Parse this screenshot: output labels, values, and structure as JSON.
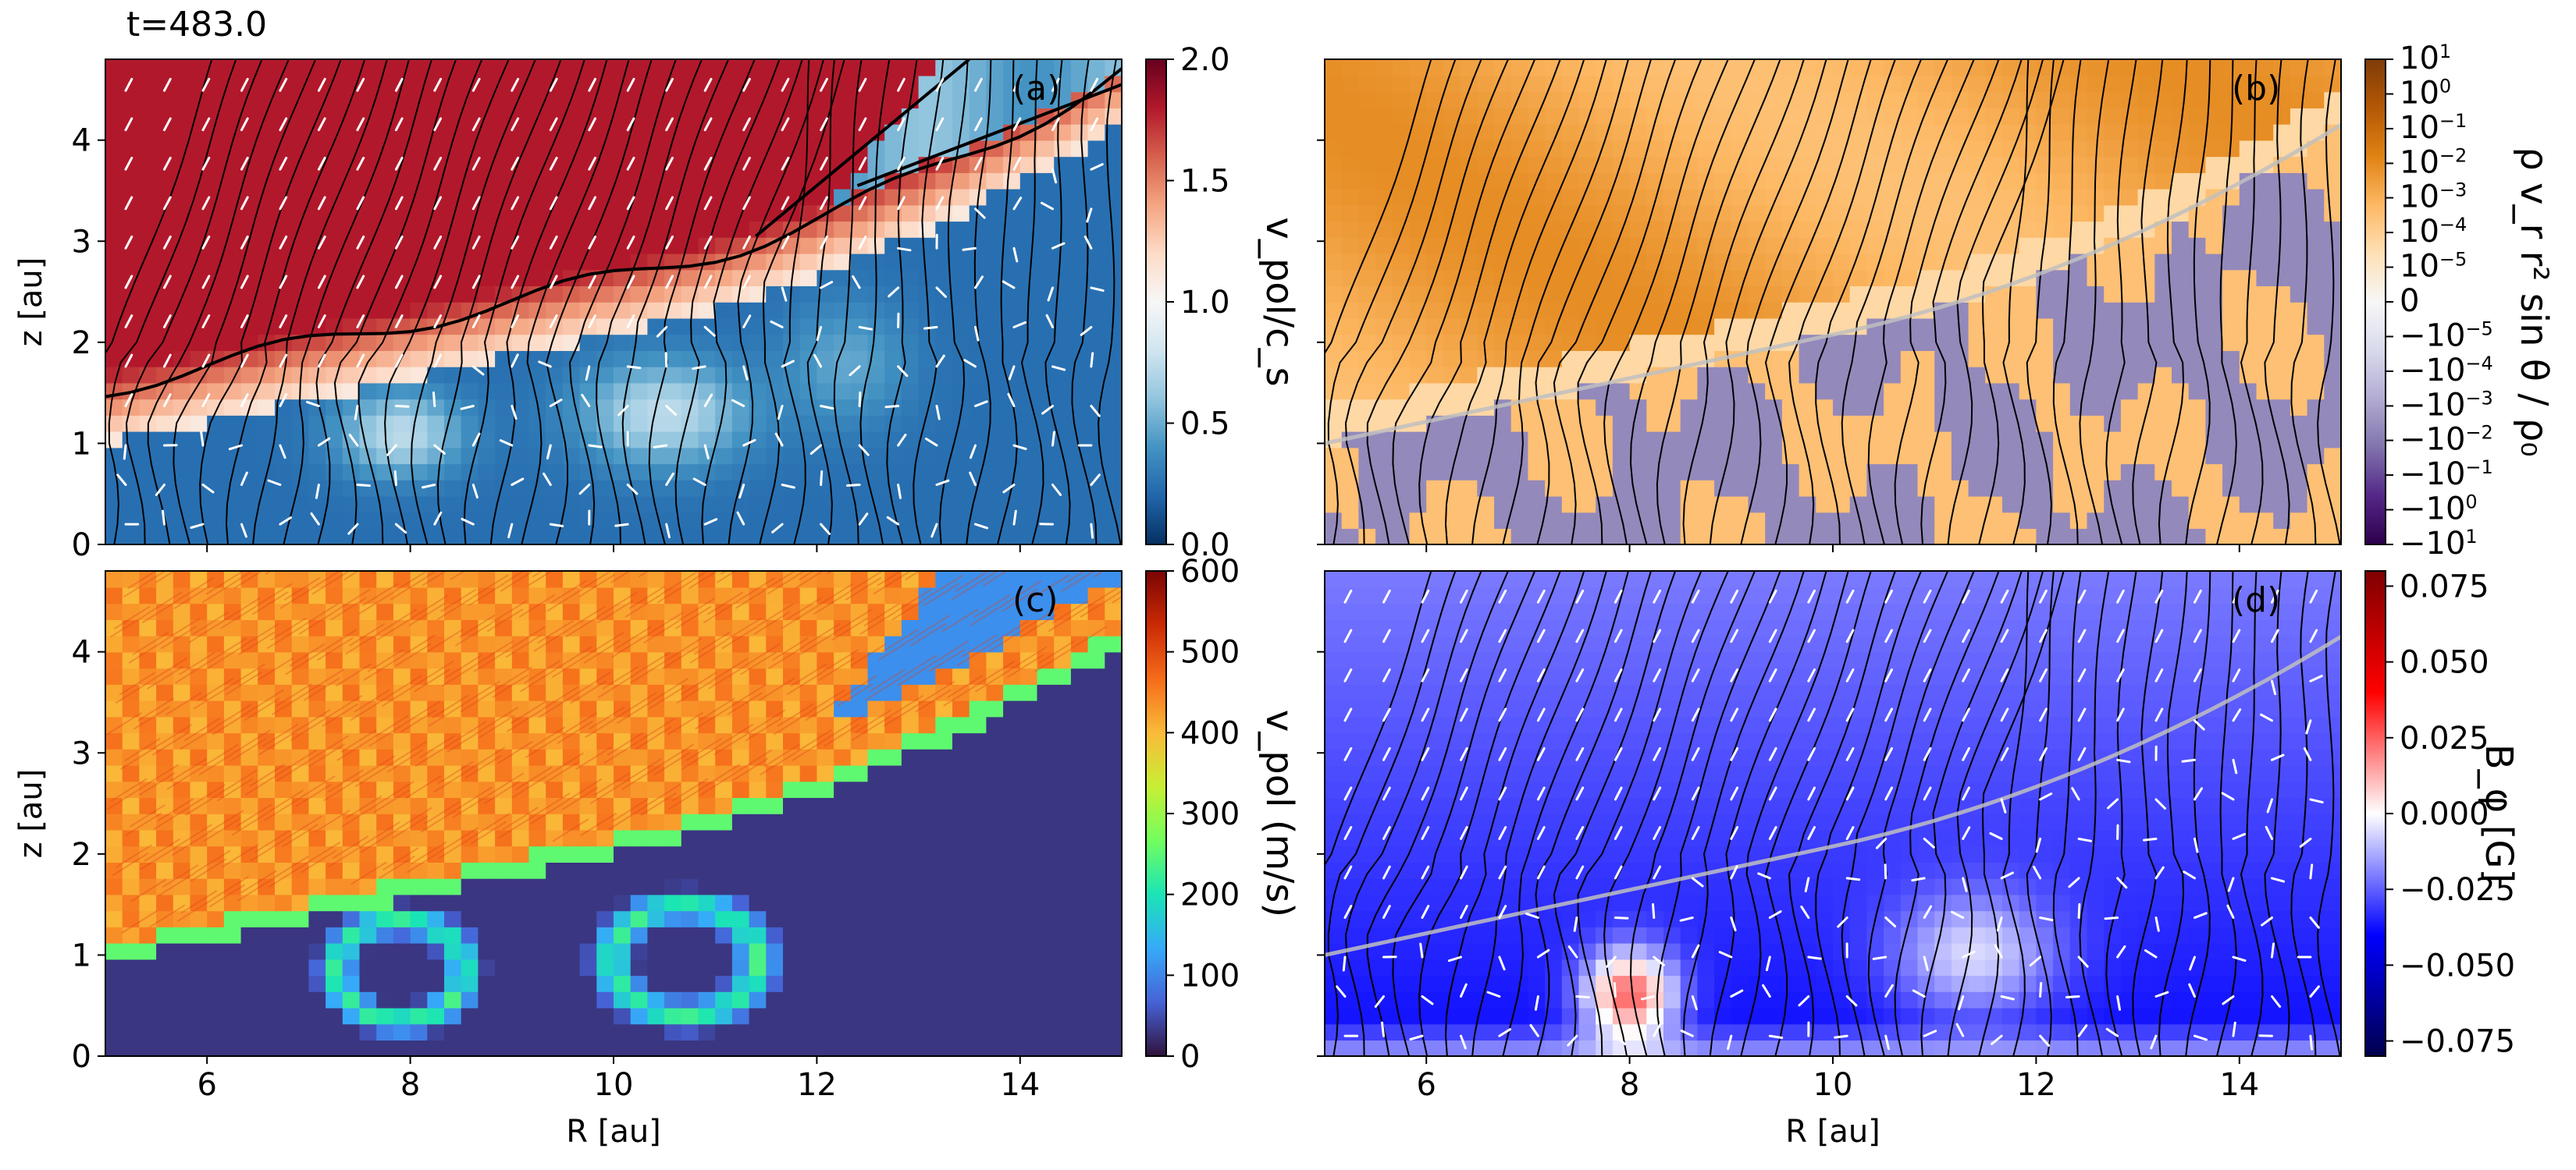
{
  "figure": {
    "time_label": "t=483.0"
  },
  "colors": {
    "rdbu": [
      "#053061",
      "#2166ac",
      "#4393c3",
      "#92c5de",
      "#d1e5f0",
      "#f7f7f7",
      "#fddbc7",
      "#f4a582",
      "#d6604d",
      "#b2182b",
      "#67001f"
    ],
    "puor": [
      "#2d004b",
      "#542788",
      "#8073ac",
      "#b2abd2",
      "#d8daeb",
      "#f7f7f7",
      "#fee0b6",
      "#fdb863",
      "#e08214",
      "#b35806",
      "#7f3b08"
    ],
    "turbo": [
      "#30123b",
      "#4662d7",
      "#36aaf9",
      "#1ae4b6",
      "#72fe5e",
      "#c8ef34",
      "#faba39",
      "#f66b19",
      "#ca2a04",
      "#7a0403"
    ],
    "seismic": [
      "#00004c",
      "#0000ff",
      "#ffffff",
      "#ff0000",
      "#7f0000"
    ],
    "field_lines": "#000000",
    "sonic_contour": "#000000",
    "base_contour": "#c0c0c0",
    "arrows": "#ffffff"
  },
  "chart_data": [
    {
      "panel": "a",
      "type": "heatmap",
      "panel_label": "(a)",
      "xlabel": "",
      "ylabel": "z [au]",
      "xlim": [
        5,
        15
      ],
      "ylim": [
        0,
        4.8
      ],
      "x_ticks": [
        "6",
        "8",
        "10",
        "12",
        "14"
      ],
      "x_tick_values": [
        6,
        8,
        10,
        12,
        14
      ],
      "show_x_ticklabels": false,
      "y_ticks": [
        "0",
        "1",
        "2",
        "3",
        "4"
      ],
      "y_tick_values": [
        0,
        1,
        2,
        3,
        4
      ],
      "show_y_ticklabels": true,
      "colormap": "RdBu_r",
      "colorbar": {
        "label": "v_pol/c_s",
        "range": [
          0,
          2.0
        ],
        "ticks": [
          "0.0",
          "0.5",
          "1.0",
          "1.5",
          "2.0"
        ],
        "tick_values": [
          0,
          0.5,
          1.0,
          1.5,
          2.0
        ]
      },
      "overlays": [
        "magnetic field lines",
        "sonic contour v_pol/c_s = 1",
        "velocity direction arrows"
      ]
    },
    {
      "panel": "b",
      "type": "heatmap",
      "panel_label": "(b)",
      "xlabel": "",
      "ylabel": "",
      "xlim": [
        5,
        15
      ],
      "ylim": [
        0,
        4.8
      ],
      "x_ticks": [
        "6",
        "8",
        "10",
        "12",
        "14"
      ],
      "x_tick_values": [
        6,
        8,
        10,
        12,
        14
      ],
      "show_x_ticklabels": false,
      "y_ticks": [
        "0",
        "1",
        "2",
        "3",
        "4"
      ],
      "y_tick_values": [
        0,
        1,
        2,
        3,
        4
      ],
      "show_y_ticklabels": false,
      "colormap": "PuOr_r (symlog)",
      "colorbar": {
        "label": "ρ v_r r² sin θ / ρ₀",
        "range": [
          -1,
          1
        ],
        "ticks": [
          {
            "base": "10",
            "exp": "1",
            "v": 1.0
          },
          {
            "base": "10",
            "exp": "0",
            "v": 0.857
          },
          {
            "base": "10",
            "exp": "−1",
            "v": 0.714
          },
          {
            "base": "10",
            "exp": "−2",
            "v": 0.571
          },
          {
            "base": "10",
            "exp": "−3",
            "v": 0.429
          },
          {
            "base": "10",
            "exp": "−4",
            "v": 0.286
          },
          {
            "base": "10",
            "exp": "−5",
            "v": 0.143
          },
          {
            "base": "0",
            "exp": "",
            "v": 0.0
          },
          {
            "base": "−10",
            "exp": "−5",
            "v": -0.143
          },
          {
            "base": "−10",
            "exp": "−4",
            "v": -0.286
          },
          {
            "base": "−10",
            "exp": "−3",
            "v": -0.429
          },
          {
            "base": "−10",
            "exp": "−2",
            "v": -0.571
          },
          {
            "base": "−10",
            "exp": "−1",
            "v": -0.714
          },
          {
            "base": "−10",
            "exp": "0",
            "v": -0.857
          },
          {
            "base": "−10",
            "exp": "1",
            "v": -1.0
          }
        ]
      },
      "overlays": [
        "magnetic field lines",
        "wind base contour"
      ]
    },
    {
      "panel": "c",
      "type": "heatmap",
      "panel_label": "(c)",
      "xlabel": "R [au]",
      "ylabel": "z [au]",
      "xlim": [
        5,
        15
      ],
      "ylim": [
        0,
        4.8
      ],
      "x_ticks": [
        "6",
        "8",
        "10",
        "12",
        "14"
      ],
      "x_tick_values": [
        6,
        8,
        10,
        12,
        14
      ],
      "show_x_ticklabels": true,
      "y_ticks": [
        "0",
        "1",
        "2",
        "3",
        "4"
      ],
      "y_tick_values": [
        0,
        1,
        2,
        3,
        4
      ],
      "show_y_ticklabels": true,
      "colormap": "turbo (LIC streaks)",
      "colorbar": {
        "label": "v_pol (m/s)",
        "range": [
          0,
          600
        ],
        "ticks": [
          "0",
          "100",
          "200",
          "300",
          "400",
          "500",
          "600"
        ],
        "tick_values": [
          0,
          100,
          200,
          300,
          400,
          500,
          600
        ]
      },
      "overlays": [
        "line integral convolution texture"
      ]
    },
    {
      "panel": "d",
      "type": "heatmap",
      "panel_label": "(d)",
      "xlabel": "R [au]",
      "ylabel": "",
      "xlim": [
        5,
        15
      ],
      "ylim": [
        0,
        4.8
      ],
      "x_ticks": [
        "6",
        "8",
        "10",
        "12",
        "14"
      ],
      "x_tick_values": [
        6,
        8,
        10,
        12,
        14
      ],
      "show_x_ticklabels": true,
      "y_ticks": [
        "0",
        "1",
        "2",
        "3",
        "4"
      ],
      "y_tick_values": [
        0,
        1,
        2,
        3,
        4
      ],
      "show_y_ticklabels": false,
      "colormap": "seismic",
      "colorbar": {
        "label": "B_φ [G]",
        "range": [
          -0.08,
          0.08
        ],
        "ticks": [
          "0.075",
          "0.050",
          "0.025",
          "0.000",
          "−0.025",
          "−0.050",
          "−0.075"
        ],
        "tick_values": [
          0.075,
          0.05,
          0.025,
          0,
          -0.025,
          -0.05,
          -0.075
        ]
      },
      "overlays": [
        "magnetic field lines",
        "wind base contour",
        "velocity direction arrows"
      ]
    }
  ]
}
